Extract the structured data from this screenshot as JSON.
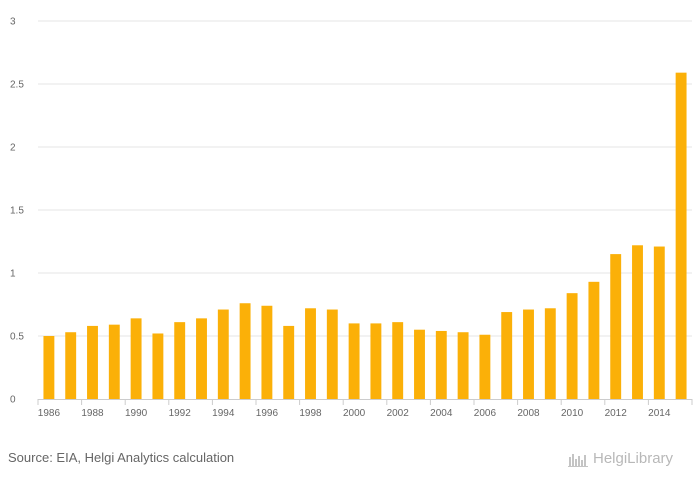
{
  "chart_data": {
    "type": "bar",
    "title": "",
    "xlabel": "",
    "ylabel": "",
    "ylim": [
      0,
      3
    ],
    "yticks": [
      0,
      0.5,
      1,
      1.5,
      2,
      2.5,
      3
    ],
    "ytick_labels": [
      "0",
      "0.5",
      "1",
      "1.5",
      "2",
      "2.5",
      "3"
    ],
    "xtick_labels": [
      "1986",
      "1988",
      "1990",
      "1992",
      "1994",
      "1996",
      "1998",
      "2000",
      "2002",
      "2004",
      "2006",
      "2008",
      "2010",
      "2012",
      "2014"
    ],
    "categories": [
      "1986",
      "1987",
      "1988",
      "1989",
      "1990",
      "1991",
      "1992",
      "1993",
      "1994",
      "1995",
      "1996",
      "1997",
      "1998",
      "1999",
      "2000",
      "2001",
      "2002",
      "2003",
      "2004",
      "2005",
      "2006",
      "2007",
      "2008",
      "2009",
      "2010",
      "2011",
      "2012",
      "2013",
      "2014",
      "2015"
    ],
    "values": [
      0.5,
      0.53,
      0.58,
      0.59,
      0.64,
      0.52,
      0.61,
      0.64,
      0.71,
      0.76,
      0.74,
      0.58,
      0.72,
      0.71,
      0.6,
      0.6,
      0.61,
      0.55,
      0.54,
      0.53,
      0.51,
      0.69,
      0.71,
      0.72,
      0.84,
      0.93,
      1.15,
      1.22,
      1.21,
      2.59
    ],
    "bar_color": "#FBB008",
    "grid": true
  },
  "footer": {
    "source": "Source: EIA, Helgi Analytics calculation",
    "logo_text": "HelgiLibrary"
  }
}
